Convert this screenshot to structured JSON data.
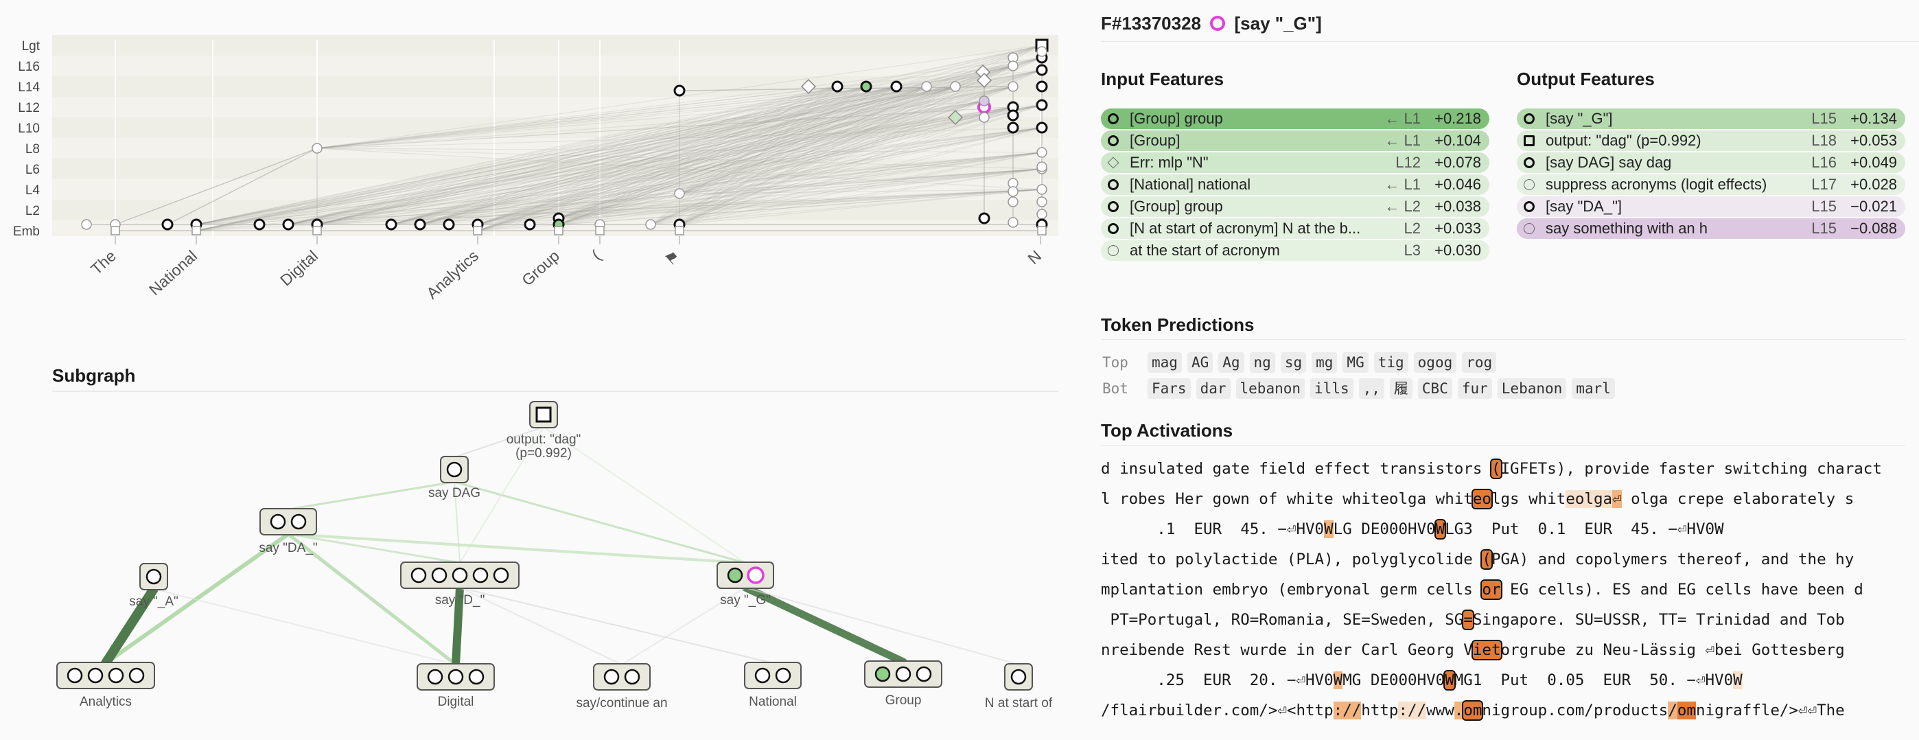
{
  "feature": {
    "title": "F#13370328",
    "name": "[say \"_G\"]",
    "icon": "feature-ring-icon",
    "accent": "#e040e0"
  },
  "graph": {
    "layers": [
      "Lgt",
      "L16",
      "L14",
      "L12",
      "L10",
      "L8",
      "L6",
      "L4",
      "L2",
      "Emb"
    ],
    "tokens": [
      "The",
      "National",
      "Digital",
      "Analytics",
      "Group",
      "(",
      "⚑",
      "N"
    ]
  },
  "subgraph": {
    "title": "Subgraph",
    "nodes": [
      {
        "id": "output",
        "label": "output: \"dag\"",
        "sublabel": "(p=0.992)"
      },
      {
        "id": "saydag",
        "label": "say DAG"
      },
      {
        "id": "sayda",
        "label": "say \"DA_\""
      },
      {
        "id": "saya",
        "label": "say \"_A\""
      },
      {
        "id": "sayd",
        "label": "say \"D_\""
      },
      {
        "id": "sayg",
        "label": "say \"_G\""
      },
      {
        "id": "analytics",
        "label": "Analytics"
      },
      {
        "id": "digital",
        "label": "Digital"
      },
      {
        "id": "saycont",
        "label": "say/continue an"
      },
      {
        "id": "national",
        "label": "National"
      },
      {
        "id": "group",
        "label": "Group"
      },
      {
        "id": "nstart",
        "label": "N at start of"
      }
    ]
  },
  "input_features": {
    "title": "Input Features",
    "rows": [
      {
        "icon": "bold-circle",
        "label": "[Group] group",
        "layer": "← L1",
        "value": "+0.218",
        "bg": "#7fbf7a"
      },
      {
        "icon": "bold-circle",
        "label": "[Group]",
        "layer": "← L1",
        "value": "+0.104",
        "bg": "#b9dcb3"
      },
      {
        "icon": "diamond",
        "label": "Err: mlp \"N\"",
        "layer": "L12",
        "value": "+0.078",
        "bg": "#cfe7ca"
      },
      {
        "icon": "bold-circle",
        "label": "[National] national",
        "layer": "← L1",
        "value": "+0.046",
        "bg": "#dcecd8"
      },
      {
        "icon": "bold-circle",
        "label": "[Group] group",
        "layer": "← L2",
        "value": "+0.038",
        "bg": "#e0efdc"
      },
      {
        "icon": "bold-circle",
        "label": "[N at start of acronym] N at the b...",
        "layer": "L2",
        "value": "+0.033",
        "bg": "#e3f0df"
      },
      {
        "icon": "thin-circle",
        "label": "at the start of acronym",
        "layer": "L3",
        "value": "+0.030",
        "bg": "#e5f1e1"
      }
    ]
  },
  "output_features": {
    "title": "Output Features",
    "rows": [
      {
        "icon": "bold-circle",
        "label": "[say \"_G\"]",
        "layer": "L15",
        "value": "+0.134",
        "bg": "#b5d9ae"
      },
      {
        "icon": "square",
        "label": "output: \"dag\" (p=0.992)",
        "layer": "L18",
        "value": "+0.053",
        "bg": "#dcecd8"
      },
      {
        "icon": "bold-circle",
        "label": "[say DAG] say dag",
        "layer": "L16",
        "value": "+0.049",
        "bg": "#ddedd9"
      },
      {
        "icon": "thin-circle",
        "label": "suppress acronyms (logit effects)",
        "layer": "L17",
        "value": "+0.028",
        "bg": "#e6f1e3"
      },
      {
        "icon": "bold-circle",
        "label": "[say \"DA_\"]",
        "layer": "L15",
        "value": "−0.021",
        "bg": "#efe8f1"
      },
      {
        "icon": "thin-circle",
        "label": "say something with an h",
        "layer": "L15",
        "value": "−0.088",
        "bg": "#dcc8e0"
      }
    ]
  },
  "token_predictions": {
    "title": "Token Predictions",
    "top_label": "Top",
    "top": [
      "mag",
      "AG",
      "Ag",
      "ng",
      "sg",
      "mg",
      "MG",
      "tig",
      "ogog",
      "rog"
    ],
    "bottom_label": "Bot",
    "bottom": [
      "Fars",
      "dar",
      "lebanon",
      "ills",
      "‚‚",
      "履",
      "CBC",
      "fur",
      "Lebanon",
      "marl"
    ]
  },
  "top_activations": {
    "title": "Top Activations",
    "lines": [
      [
        [
          "d insulated gate field effect transistors ",
          0
        ],
        [
          "(",
          4
        ],
        [
          "IGFETs), provide faster switching charact",
          0
        ]
      ],
      [
        [
          "l robes Her gown of white whiteolga whit",
          0
        ],
        [
          "eo",
          4
        ],
        [
          "lgs whit",
          0
        ],
        [
          "eolga",
          1
        ],
        [
          "⏎",
          2
        ],
        [
          " olga crepe elaborately s",
          0
        ]
      ],
      [
        [
          "      .1  EUR  45. −⏎HV0",
          0
        ],
        [
          "W",
          2
        ],
        [
          "LG DE000HV0",
          0
        ],
        [
          "W",
          4
        ],
        [
          "LG3  Put  0.1  EUR  45. −⏎HV0W",
          0
        ]
      ],
      [
        [
          "ited to polylactide (PLA), polyglycolide ",
          0
        ],
        [
          "(",
          4
        ],
        [
          "PGA) and copolymers thereof, and the hy",
          0
        ]
      ],
      [
        [
          "mplantation embryo (embryonal germ cells ",
          0
        ],
        [
          "or",
          4
        ],
        [
          " EG cells). ES and EG cells have been d",
          0
        ]
      ],
      [
        [
          " PT=Portugal, RO=Romania, SE=Sweden, SG",
          0
        ],
        [
          "=",
          4
        ],
        [
          "Singapore. SU=USSR, TT= Trinidad and Tob",
          0
        ]
      ],
      [
        [
          "nreibende Rest wurde in der Carl Georg V",
          0
        ],
        [
          "iet",
          4
        ],
        [
          "orgrube zu Neu-Lässig ⏎bei Gottesberg",
          0
        ]
      ],
      [
        [
          "      .25  EUR  20. −⏎HV0",
          0
        ],
        [
          "W",
          2
        ],
        [
          "MG DE000HV0",
          0
        ],
        [
          "W",
          4
        ],
        [
          "MG1  Put  0.05  EUR  50. −⏎HV0",
          0
        ],
        [
          "W",
          1
        ]
      ],
      [
        [
          "/flairbuilder.com/>⏎<http",
          0
        ],
        [
          "://",
          2
        ],
        [
          "http",
          0
        ],
        [
          "://",
          1
        ],
        [
          "www",
          0
        ],
        [
          ".",
          2
        ],
        [
          "om",
          4
        ],
        [
          "nigroup.com/products",
          0
        ],
        [
          "/",
          2
        ],
        [
          "om",
          3
        ],
        [
          "nigraffle/>⏎⏎The",
          0
        ]
      ]
    ]
  }
}
